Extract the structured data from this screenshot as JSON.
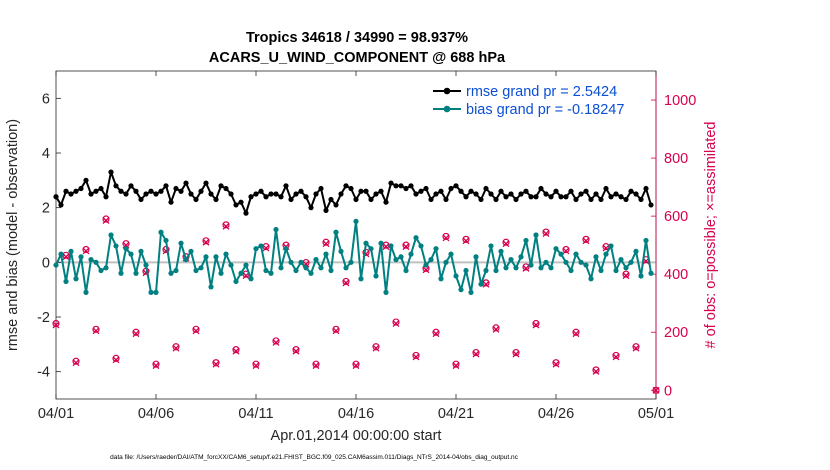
{
  "chart_data": {
    "type": "line",
    "title_line1": "Tropics 34618 / 34990 = 98.937%",
    "title_line2": "ACARS_U_WIND_COMPONENT @ 688 hPa",
    "ylabel": "rmse and bias (model - observation)",
    "ylabel_right": "# of obs: o=possible; ×=assimilated",
    "xlabel": "Apr.01,2014 00:00:00 start",
    "footnote": "data file: /Users/raeder/DAI/ATM_forcXX/CAM6_setup/f.e21.FHIST_BGC.f09_025.CAM6assim.011/Diags_NTrS_2014-04/obs_diag_output.nc",
    "xlim": [
      0,
      30
    ],
    "ylim": [
      -5,
      7
    ],
    "ylim_right": [
      -30,
      1100
    ],
    "xticks": [
      0,
      5,
      10,
      15,
      20,
      25,
      30
    ],
    "xtick_labels": [
      "04/01",
      "04/06",
      "04/11",
      "04/16",
      "04/21",
      "04/26",
      "05/01"
    ],
    "yticks": [
      -4,
      -2,
      0,
      2,
      4,
      6
    ],
    "ytick_labels": [
      "-4",
      "-2",
      "0",
      "2",
      "4",
      "6"
    ],
    "yticks_right": [
      0,
      200,
      400,
      600,
      800,
      1000
    ],
    "ytick_labels_right": [
      "0",
      "200",
      "400",
      "600",
      "800",
      "1000"
    ],
    "legend": [
      {
        "label": "rmse grand pr = 2.5424",
        "color": "#000000"
      },
      {
        "label": "bias grand pr = -0.18247",
        "color": "#008080"
      }
    ],
    "legend_position": "top-right",
    "zero_line": 0,
    "series": [
      {
        "name": "rmse",
        "color": "#000000",
        "axis": "left",
        "x": [
          0,
          0.25,
          0.5,
          0.75,
          1,
          1.25,
          1.5,
          1.75,
          2,
          2.25,
          2.5,
          2.75,
          3,
          3.25,
          3.5,
          3.75,
          4,
          4.25,
          4.5,
          4.75,
          5,
          5.25,
          5.5,
          5.75,
          6,
          6.25,
          6.5,
          6.75,
          7,
          7.25,
          7.5,
          7.75,
          8,
          8.25,
          8.5,
          8.75,
          9,
          9.25,
          9.5,
          9.75,
          10,
          10.25,
          10.5,
          10.75,
          11,
          11.25,
          11.5,
          11.75,
          12,
          12.25,
          12.5,
          12.75,
          13,
          13.25,
          13.5,
          13.75,
          14,
          14.25,
          14.5,
          14.75,
          15,
          15.25,
          15.5,
          15.75,
          16,
          16.25,
          16.5,
          16.75,
          17,
          17.25,
          17.5,
          17.75,
          18,
          18.25,
          18.5,
          18.75,
          19,
          19.25,
          19.5,
          19.75,
          20,
          20.25,
          20.5,
          20.75,
          21,
          21.25,
          21.5,
          21.75,
          22,
          22.25,
          22.5,
          22.75,
          23,
          23.25,
          23.5,
          23.75,
          24,
          24.25,
          24.5,
          24.75,
          25,
          25.25,
          25.5,
          25.75,
          26,
          26.25,
          26.5,
          26.75,
          27,
          27.25,
          27.5,
          27.75,
          28,
          28.25,
          28.5,
          28.75,
          29,
          29.25,
          29.5,
          29.75
        ],
        "values": [
          2.4,
          2.1,
          2.6,
          2.5,
          2.6,
          2.7,
          3.0,
          2.5,
          2.6,
          2.7,
          2.4,
          3.3,
          2.8,
          2.6,
          2.5,
          2.8,
          2.6,
          2.3,
          2.5,
          2.6,
          2.5,
          2.6,
          2.8,
          2.2,
          2.7,
          2.6,
          2.9,
          2.5,
          2.3,
          2.6,
          2.9,
          2.5,
          2.3,
          2.8,
          2.7,
          2.5,
          2.1,
          2.2,
          1.8,
          2.4,
          2.5,
          2.6,
          2.4,
          2.5,
          2.5,
          2.4,
          2.8,
          2.3,
          2.5,
          2.6,
          2.4,
          2.0,
          2.5,
          2.7,
          1.9,
          2.3,
          2.1,
          2.5,
          2.8,
          2.7,
          2.3,
          2.6,
          2.6,
          2.3,
          2.5,
          2.6,
          2.2,
          2.9,
          2.8,
          2.8,
          2.7,
          2.8,
          2.5,
          2.6,
          2.7,
          2.3,
          2.5,
          2.6,
          2.3,
          2.7,
          2.8,
          2.6,
          2.4,
          2.6,
          2.5,
          2.3,
          2.7,
          2.5,
          2.3,
          2.6,
          2.4,
          2.5,
          2.3,
          2.5,
          2.6,
          2.4,
          2.4,
          2.7,
          2.5,
          2.4,
          2.6,
          2.4,
          2.4,
          2.6,
          2.3,
          2.5,
          2.6,
          2.3,
          2.5,
          2.3,
          2.7,
          2.4,
          2.5,
          2.4,
          2.3,
          2.6,
          2.5,
          2.3,
          2.7,
          2.1
        ]
      },
      {
        "name": "bias",
        "color": "#008080",
        "axis": "left",
        "x": [
          0,
          0.25,
          0.5,
          0.75,
          1,
          1.25,
          1.5,
          1.75,
          2,
          2.25,
          2.5,
          2.75,
          3,
          3.25,
          3.5,
          3.75,
          4,
          4.25,
          4.5,
          4.75,
          5,
          5.25,
          5.5,
          5.75,
          6,
          6.25,
          6.5,
          6.75,
          7,
          7.25,
          7.5,
          7.75,
          8,
          8.25,
          8.5,
          8.75,
          9,
          9.25,
          9.5,
          9.75,
          10,
          10.25,
          10.5,
          10.75,
          11,
          11.25,
          11.5,
          11.75,
          12,
          12.25,
          12.5,
          12.75,
          13,
          13.25,
          13.5,
          13.75,
          14,
          14.25,
          14.5,
          14.75,
          15,
          15.25,
          15.5,
          15.75,
          16,
          16.25,
          16.5,
          16.75,
          17,
          17.25,
          17.5,
          17.75,
          18,
          18.25,
          18.5,
          18.75,
          19,
          19.25,
          19.5,
          19.75,
          20,
          20.25,
          20.5,
          20.75,
          21,
          21.25,
          21.5,
          21.75,
          22,
          22.25,
          22.5,
          22.75,
          23,
          23.25,
          23.5,
          23.75,
          24,
          24.25,
          24.5,
          24.75,
          25,
          25.25,
          25.5,
          25.75,
          26,
          26.25,
          26.5,
          26.75,
          27,
          27.25,
          27.5,
          27.75,
          28,
          28.25,
          28.5,
          28.75,
          29,
          29.25,
          29.5,
          29.75
        ],
        "values": [
          -0.1,
          0.3,
          -0.7,
          0.4,
          -0.6,
          0.2,
          -1.1,
          0.1,
          0.0,
          -0.3,
          -0.2,
          1.0,
          0.6,
          -0.4,
          0.5,
          0.3,
          -0.4,
          0.4,
          -0.1,
          -1.1,
          -1.1,
          1.1,
          0.8,
          -0.4,
          -0.3,
          0.7,
          0.1,
          0.4,
          -0.3,
          -0.2,
          0.2,
          -0.9,
          0.2,
          -0.4,
          0.3,
          -0.1,
          -0.7,
          -0.4,
          -0.1,
          -0.6,
          0.5,
          0.6,
          -0.3,
          -0.4,
          1.2,
          -0.2,
          0.5,
          0.0,
          -0.3,
          0.0,
          -0.2,
          -0.4,
          0.1,
          -0.2,
          0.3,
          -0.3,
          1.1,
          0.4,
          -0.2,
          0.0,
          1.5,
          -0.6,
          0.7,
          0.5,
          -0.5,
          0.7,
          -1.1,
          0.6,
          0.1,
          0.2,
          -0.3,
          0.3,
          0.9,
          0.6,
          -0.1,
          0.1,
          0.5,
          -0.6,
          0.0,
          0.3,
          -0.5,
          -1.0,
          -0.3,
          -1.1,
          0.2,
          -0.8,
          -0.3,
          0.6,
          -0.3,
          0.4,
          -0.2,
          0.1,
          -0.2,
          0.2,
          0.8,
          -0.1,
          1.0,
          -0.2,
          0.0,
          -0.2,
          0.5,
          0.3,
          0.0,
          -0.3,
          0.3,
          0.0,
          -0.1,
          -0.6,
          0.2,
          -0.3,
          0.3,
          0.6,
          -0.3,
          0.1,
          -0.2,
          0.0,
          0.4,
          -0.5,
          0.8,
          -0.4
        ]
      },
      {
        "name": "# obs possible",
        "color": "#d6004e",
        "axis": "right",
        "marker": "o",
        "x": [
          0,
          0.5,
          1,
          1.5,
          2,
          2.5,
          3,
          3.5,
          4,
          4.5,
          5,
          5.5,
          6,
          6.5,
          7,
          7.5,
          8,
          8.5,
          9,
          9.5,
          10,
          10.5,
          11,
          11.5,
          12,
          12.5,
          13,
          13.5,
          14,
          14.5,
          15,
          15.5,
          16,
          16.5,
          17,
          17.5,
          18,
          18.5,
          19,
          19.5,
          20,
          20.5,
          21,
          21.5,
          22,
          22.5,
          23,
          23.5,
          24,
          24.5,
          25,
          25.5,
          26,
          26.5,
          27,
          27.5,
          28,
          28.5,
          29,
          29.5,
          30
        ],
        "values": [
          230,
          465,
          100,
          485,
          210,
          590,
          110,
          505,
          200,
          410,
          90,
          485,
          150,
          460,
          210,
          515,
          95,
          570,
          140,
          400,
          90,
          495,
          170,
          500,
          140,
          440,
          90,
          510,
          210,
          375,
          90,
          475,
          150,
          500,
          235,
          500,
          120,
          420,
          200,
          530,
          90,
          520,
          130,
          370,
          215,
          510,
          130,
          425,
          230,
          545,
          95,
          485,
          200,
          520,
          70,
          495,
          120,
          400,
          150,
          450,
          0
        ]
      },
      {
        "name": "# obs assimilated",
        "color": "#d6004e",
        "axis": "right",
        "marker": "x",
        "x": [
          0,
          0.5,
          1,
          1.5,
          2,
          2.5,
          3,
          3.5,
          4,
          4.5,
          5,
          5.5,
          6,
          6.5,
          7,
          7.5,
          8,
          8.5,
          9,
          9.5,
          10,
          10.5,
          11,
          11.5,
          12,
          12.5,
          13,
          13.5,
          14,
          14.5,
          15,
          15.5,
          16,
          16.5,
          17,
          17.5,
          18,
          18.5,
          19,
          19.5,
          20,
          20.5,
          21,
          21.5,
          22,
          22.5,
          23,
          23.5,
          24,
          24.5,
          25,
          25.5,
          26,
          26.5,
          27,
          27.5,
          28,
          28.5,
          29,
          29.5,
          30
        ],
        "values": [
          225,
          460,
          95,
          480,
          205,
          585,
          105,
          500,
          195,
          405,
          85,
          480,
          145,
          455,
          205,
          510,
          90,
          565,
          135,
          395,
          85,
          490,
          165,
          495,
          135,
          435,
          85,
          505,
          205,
          370,
          85,
          470,
          145,
          495,
          230,
          495,
          115,
          415,
          195,
          525,
          85,
          515,
          125,
          365,
          210,
          505,
          125,
          420,
          225,
          540,
          90,
          480,
          195,
          515,
          65,
          490,
          115,
          395,
          145,
          445,
          0
        ]
      }
    ]
  }
}
